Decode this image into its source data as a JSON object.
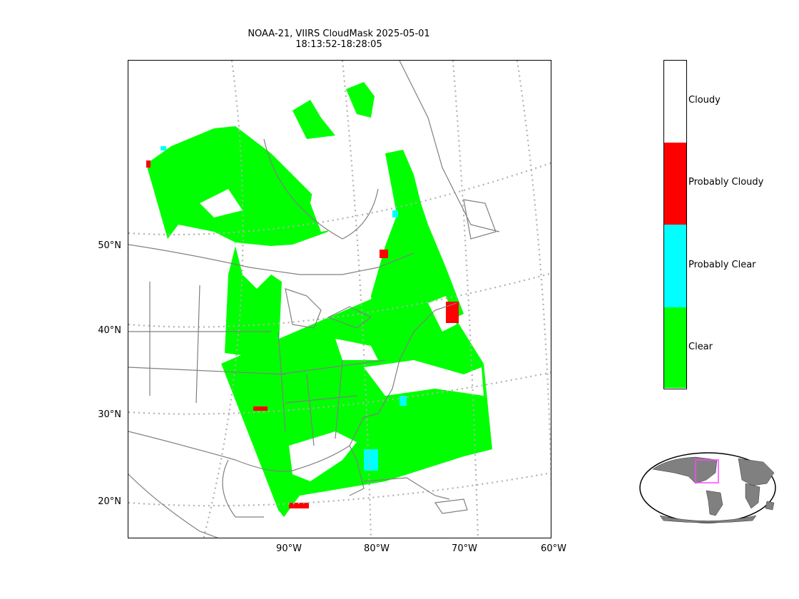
{
  "title": {
    "line1": "NOAA-21, VIIRS CloudMask 2025-05-01",
    "line2": "18:13:52-18:28:05"
  },
  "lat_labels": [
    "50°N",
    "40°N",
    "30°N",
    "20°N"
  ],
  "lon_labels": [
    "90°W",
    "80°W",
    "70°W",
    "60°W"
  ],
  "legend": {
    "items": [
      {
        "label": "Cloudy",
        "color": "#ffffff"
      },
      {
        "label": "Probably Cloudy",
        "color": "#ff0000"
      },
      {
        "label": "Probably Clear",
        "color": "#00ffff"
      },
      {
        "label": "Clear",
        "color": "#00ff00"
      }
    ]
  },
  "colors": {
    "clear": "#00ff00",
    "probably_clear": "#00ffff",
    "probably_cloudy": "#ff0000",
    "cloudy": "#ffffff",
    "coastline": "#808080",
    "gridline": "#b0b0b0",
    "globe_land": "#808080",
    "globe_box": "#ff44ff"
  }
}
